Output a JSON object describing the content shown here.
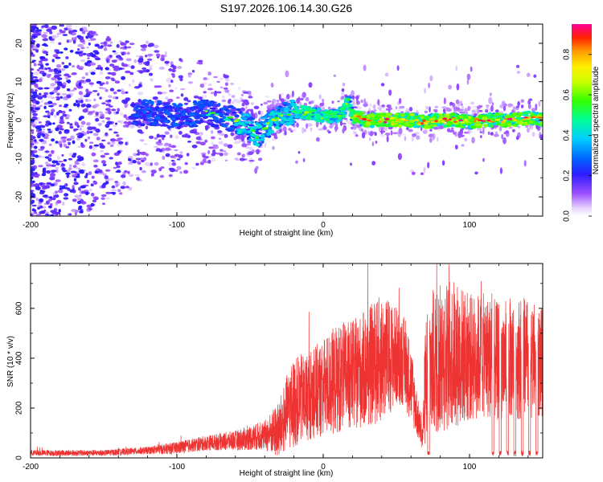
{
  "title": "S197.2026.106.14.30.G26",
  "chart_data": [
    {
      "type": "heatmap",
      "name": "spectrogram",
      "xlabel": "Height of straight line (km)",
      "ylabel": "Frequency (Hz)",
      "xlim": [
        -200,
        150
      ],
      "ylim": [
        -25,
        25
      ],
      "xticks": [
        -200,
        -100,
        0,
        100
      ],
      "yticks": [
        -20,
        -10,
        0,
        10,
        20
      ],
      "colorbar": {
        "label": "Normalized spectral amplitude",
        "range": [
          0,
          0.95
        ],
        "ticks": [
          0.0,
          0.2,
          0.4,
          0.6,
          0.8
        ]
      },
      "ridge": {
        "description_points_x": [
          -200,
          -150,
          -120,
          -100,
          -80,
          -60,
          -50,
          -45,
          -40,
          -30,
          -20,
          -10,
          0,
          10,
          15,
          17,
          20,
          30,
          40,
          50,
          60,
          70,
          80,
          90,
          100,
          110,
          120,
          130,
          140,
          150
        ],
        "freq_hz": [
          0,
          0,
          2,
          1,
          2,
          0,
          -2,
          -4,
          -2,
          1,
          2,
          2,
          1,
          1,
          3,
          5,
          1,
          0,
          0,
          0,
          0,
          -0.5,
          0,
          0,
          -0.5,
          0,
          0,
          0,
          0.5,
          0
        ]
      }
    },
    {
      "type": "line",
      "name": "snr",
      "xlabel": "Height of straight line (km)",
      "ylabel": "SNR (10 * v/v)",
      "xlim": [
        -200,
        150
      ],
      "ylim": [
        0,
        780
      ],
      "xticks": [
        -200,
        -100,
        0,
        100
      ],
      "yticks": [
        0,
        200,
        400,
        600
      ],
      "color": "#ee3333",
      "envelope": {
        "x": [
          -200,
          -150,
          -120,
          -100,
          -80,
          -60,
          -40,
          -30,
          -25,
          -20,
          -10,
          0,
          10,
          20,
          30,
          40,
          50,
          55,
          60,
          65,
          68,
          70,
          75,
          80,
          90,
          100,
          110,
          115,
          120,
          130,
          140,
          150
        ],
        "mean": [
          20,
          20,
          30,
          40,
          60,
          70,
          90,
          110,
          180,
          220,
          250,
          280,
          320,
          330,
          360,
          400,
          410,
          390,
          300,
          150,
          80,
          330,
          380,
          400,
          420,
          400,
          410,
          400,
          380,
          400,
          400,
          380
        ],
        "amp": [
          12,
          12,
          15,
          25,
          30,
          40,
          60,
          120,
          150,
          180,
          180,
          200,
          220,
          220,
          240,
          260,
          200,
          180,
          160,
          80,
          50,
          280,
          300,
          300,
          300,
          260,
          250,
          250,
          240,
          250,
          240,
          220
        ]
      },
      "dropouts_x": [
        72,
        116,
        121,
        126,
        131,
        136,
        141,
        146
      ]
    }
  ]
}
